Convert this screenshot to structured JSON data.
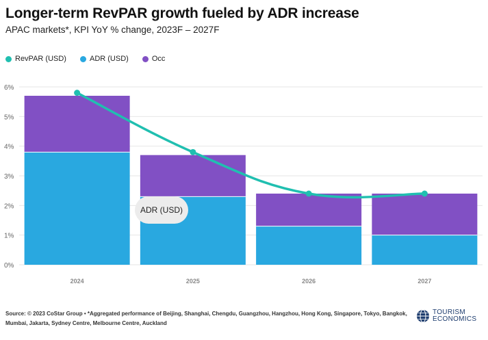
{
  "header": {
    "title": "Longer-term RevPAR growth fueled by ADR increase",
    "subtitle": "APAC markets*, KPI YoY % change, 2023F – 2027F"
  },
  "legend": [
    {
      "label": "RevPAR (USD)",
      "color": "#20bfb0"
    },
    {
      "label": "ADR (USD)",
      "color": "#29a8e0"
    },
    {
      "label": "Occ",
      "color": "#8150c4"
    }
  ],
  "tooltip": {
    "label": "ADR (USD)"
  },
  "footer": {
    "source": "Source: © 2023 CoStar Group • *Aggregated performance of Beijing, Shanghai, Chengdu, Guangzhou, Hangzhou, Hong Kong, Singapore, Tokyo, Bangkok, Mumbai, Jakarta, Sydney Centre, Melbourne Centre, Auckland",
    "logo_line1": "TOURISM",
    "logo_line2": "ECONOMICS"
  },
  "chart_data": {
    "type": "bar",
    "stacked": true,
    "categories": [
      "2024",
      "2025",
      "2026",
      "2027"
    ],
    "series": [
      {
        "name": "ADR (USD)",
        "type": "bar",
        "color": "#29a8e0",
        "values": [
          3.8,
          2.3,
          1.3,
          1.0
        ]
      },
      {
        "name": "Occ",
        "type": "bar",
        "color": "#8150c4",
        "values": [
          1.9,
          1.4,
          1.1,
          1.4
        ]
      },
      {
        "name": "RevPAR (USD)",
        "type": "line",
        "color": "#20bfb0",
        "values": [
          5.8,
          3.8,
          2.4,
          2.4
        ]
      }
    ],
    "ylim": [
      0,
      6
    ],
    "yticks": [
      "0%",
      "1%",
      "2%",
      "3%",
      "4%",
      "5%",
      "6%"
    ],
    "grid": true,
    "legend_position": "top-left"
  }
}
